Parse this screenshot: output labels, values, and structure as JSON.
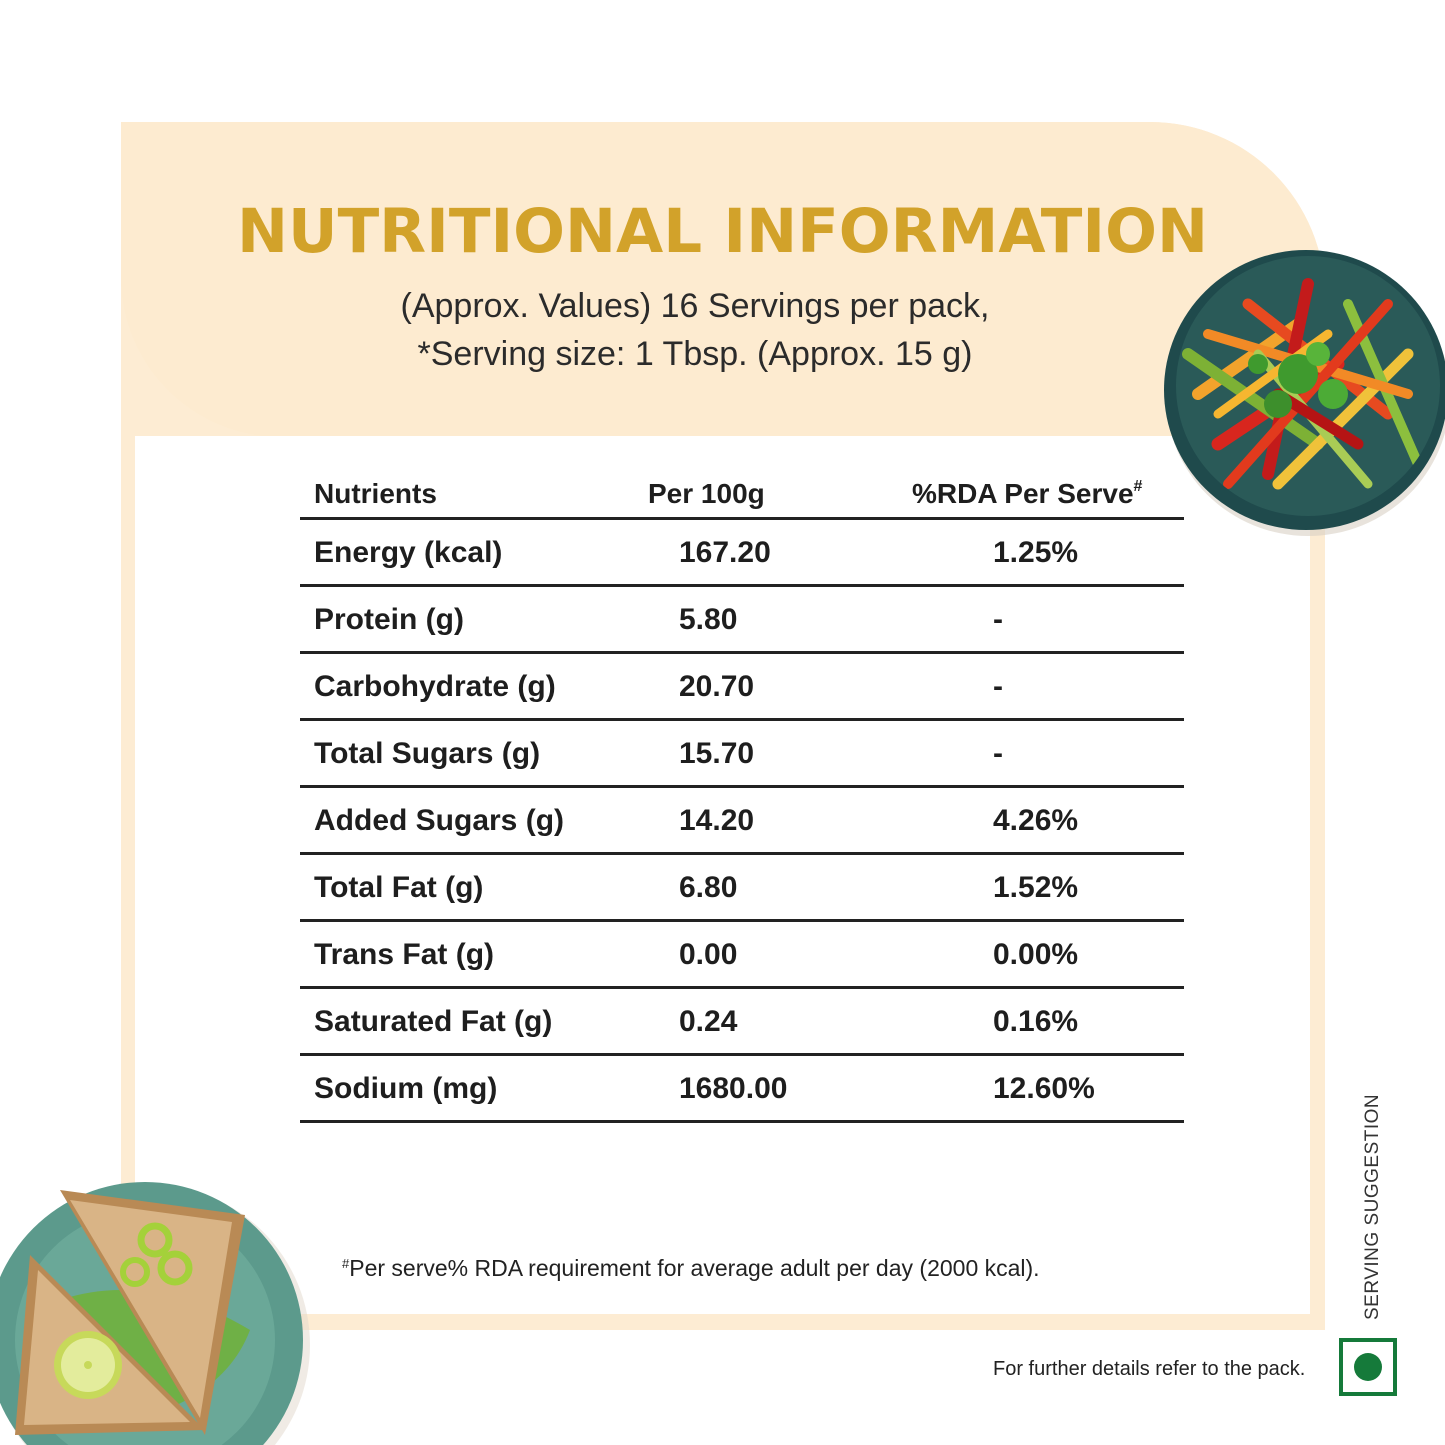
{
  "title": "NUTRITIONAL INFORMATION",
  "subtitle_line1": "(Approx. Values) 16 Servings per pack,",
  "subtitle_line2": "*Serving size: 1 Tbsp. (Approx. 15 g)",
  "table": {
    "headers": {
      "nutrients": "Nutrients",
      "per100g": "Per 100g",
      "rda": "%RDA Per Serve",
      "rda_mark": "#"
    },
    "rows": [
      {
        "nutrient": "Energy (kcal)",
        "per100g": "167.20",
        "rda": "1.25%"
      },
      {
        "nutrient": "Protein (g)",
        "per100g": "5.80",
        "rda": "-"
      },
      {
        "nutrient": "Carbohydrate (g)",
        "per100g": "20.70",
        "rda": "-"
      },
      {
        "nutrient": "Total Sugars (g)",
        "per100g": "15.70",
        "rda": "-"
      },
      {
        "nutrient": "Added Sugars (g)",
        "per100g": "14.20",
        "rda": "4.26%"
      },
      {
        "nutrient": "Total Fat (g)",
        "per100g": "6.80",
        "rda": "1.52%"
      },
      {
        "nutrient": "Trans Fat (g)",
        "per100g": "0.00",
        "rda": "0.00%"
      },
      {
        "nutrient": "Saturated Fat (g)",
        "per100g": "0.24",
        "rda": "0.16%"
      },
      {
        "nutrient": "Sodium (mg)",
        "per100g": "1680.00",
        "rda": "12.60%"
      }
    ]
  },
  "footnote_mark": "#",
  "footnote": "Per serve% RDA requirement for average adult per day (2000 kcal).",
  "serving_suggestion": "SERVING SUGGESTION",
  "pack_note": "For further details refer to the pack.",
  "colors": {
    "title": "#d2a22a",
    "card": "#fdecd3",
    "veg_mark": "#157a3a"
  },
  "icons": {
    "veg_mark": "vegetarian-symbol-icon"
  }
}
